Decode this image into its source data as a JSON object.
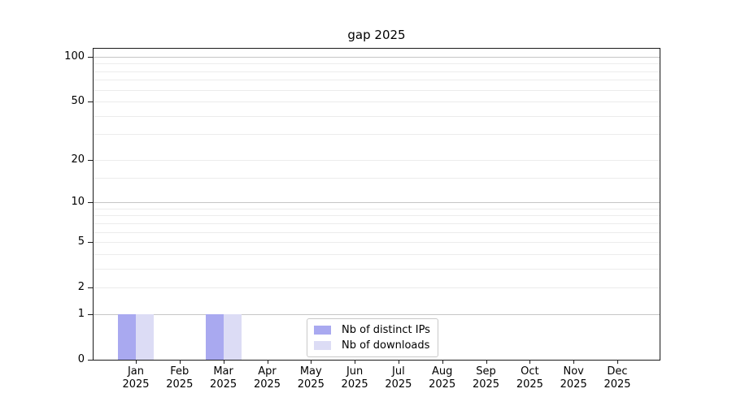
{
  "figure": {
    "background": "#ffffff"
  },
  "chart_data": {
    "type": "bar",
    "title": "gap 2025",
    "categories": [
      "Jan",
      "Feb",
      "Mar",
      "Apr",
      "May",
      "Jun",
      "Jul",
      "Aug",
      "Sep",
      "Oct",
      "Nov",
      "Dec"
    ],
    "x_year_label": "2025",
    "series": [
      {
        "name": "Nb of distinct IPs",
        "color": "#a9a9f0",
        "values": [
          1,
          0,
          1,
          0,
          0,
          0,
          0,
          0,
          0,
          0,
          0,
          0
        ]
      },
      {
        "name": "Nb of downloads",
        "color": "#dcdcf5",
        "values": [
          1,
          0,
          1,
          0,
          0,
          0,
          0,
          0,
          0,
          0,
          0,
          0
        ]
      }
    ],
    "xlabel": "",
    "ylabel": "",
    "y_scale": "log1p",
    "y_axis_ticks": [
      0,
      1,
      2,
      5,
      10,
      20,
      50,
      100
    ],
    "y_major_gridlines": [
      1,
      10,
      100
    ],
    "y_minor_gridlines": [
      2,
      3,
      4,
      5,
      6,
      7,
      8,
      9,
      15,
      20,
      30,
      40,
      50,
      60,
      70,
      80,
      90
    ],
    "ylim": [
      0,
      113
    ],
    "grid": true,
    "legend_position": "lower center"
  }
}
